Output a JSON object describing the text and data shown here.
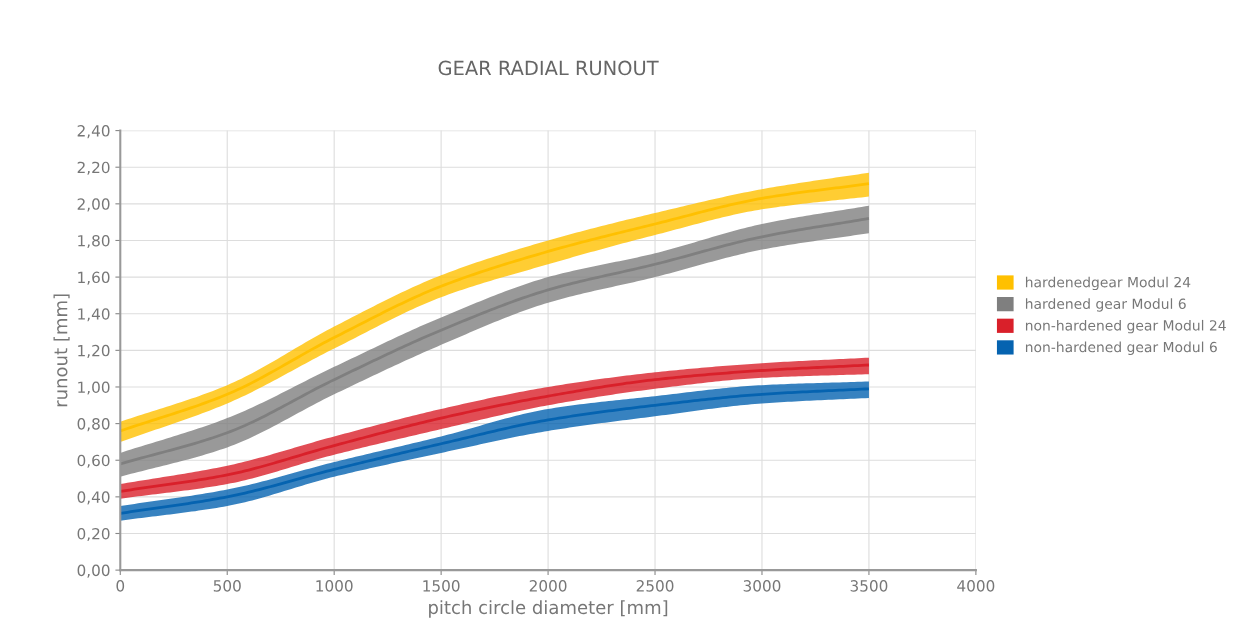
{
  "chart_data": {
    "type": "line",
    "title": "GEAR RADIAL RUNOUT",
    "xlabel": "pitch circle diameter [mm]",
    "ylabel": "runout [mm]",
    "x": [
      0,
      500,
      1000,
      1500,
      2000,
      2500,
      3000,
      3500
    ],
    "series": [
      {
        "name": "hardenedgear Modul 24",
        "color": "#ffc000",
        "values": [
          0.76,
          0.96,
          1.27,
          1.55,
          1.74,
          1.89,
          2.03,
          2.11
        ],
        "lower": [
          0.7,
          0.91,
          1.21,
          1.49,
          1.67,
          1.83,
          1.97,
          2.04
        ],
        "upper": [
          0.81,
          1.01,
          1.33,
          1.61,
          1.8,
          1.95,
          2.08,
          2.17
        ]
      },
      {
        "name": "hardened gear Modul 6",
        "color": "#7f7f7f",
        "values": [
          0.58,
          0.75,
          1.04,
          1.31,
          1.53,
          1.67,
          1.82,
          1.92
        ],
        "lower": [
          0.51,
          0.67,
          0.96,
          1.23,
          1.46,
          1.6,
          1.75,
          1.84
        ],
        "upper": [
          0.64,
          0.83,
          1.11,
          1.38,
          1.6,
          1.73,
          1.89,
          1.99
        ]
      },
      {
        "name": "non-hardened gear Modul 24",
        "color": "#d9202a",
        "values": [
          0.43,
          0.52,
          0.68,
          0.83,
          0.95,
          1.04,
          1.09,
          1.12
        ],
        "lower": [
          0.39,
          0.47,
          0.63,
          0.77,
          0.9,
          0.99,
          1.05,
          1.07
        ],
        "upper": [
          0.47,
          0.57,
          0.73,
          0.88,
          1.0,
          1.08,
          1.13,
          1.16
        ]
      },
      {
        "name": "non-hardened gear Modul 6",
        "color": "#0563b0",
        "values": [
          0.31,
          0.4,
          0.55,
          0.69,
          0.82,
          0.9,
          0.96,
          0.99
        ],
        "lower": [
          0.27,
          0.35,
          0.51,
          0.64,
          0.76,
          0.84,
          0.91,
          0.94
        ],
        "upper": [
          0.35,
          0.44,
          0.59,
          0.73,
          0.88,
          0.95,
          1.01,
          1.03
        ]
      }
    ],
    "xlim": [
      0,
      4000
    ],
    "xticks": [
      0,
      500,
      1000,
      1500,
      2000,
      2500,
      3000,
      3500,
      4000
    ],
    "ylim": [
      0,
      2.4
    ],
    "yticks": [
      {
        "value": 0,
        "label": "0,00"
      },
      {
        "value": 0.2,
        "label": "0,20"
      },
      {
        "value": 0.4,
        "label": "0,40"
      },
      {
        "value": 0.6,
        "label": "0,60"
      },
      {
        "value": 0.8,
        "label": "0,80"
      },
      {
        "value": 1.0,
        "label": "1,00"
      },
      {
        "value": 1.2,
        "label": "1,20"
      },
      {
        "value": 1.4,
        "label": "1,40"
      },
      {
        "value": 1.6,
        "label": "1,60"
      },
      {
        "value": 1.8,
        "label": "1,80"
      },
      {
        "value": 2.0,
        "label": "2,00"
      },
      {
        "value": 2.2,
        "label": "2,20"
      },
      {
        "value": 2.4,
        "label": "2,40"
      }
    ],
    "grid": true,
    "legend": "right"
  }
}
